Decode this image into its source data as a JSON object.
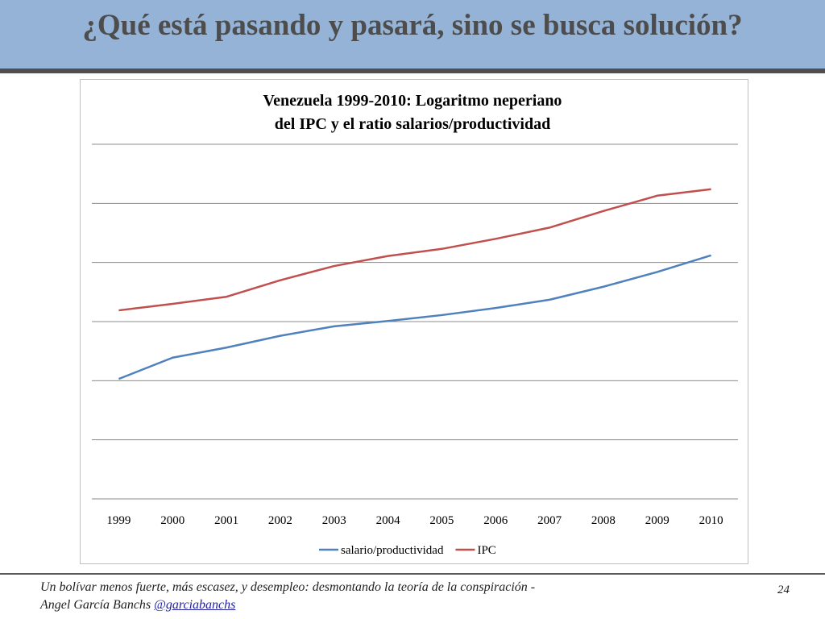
{
  "slide": {
    "title": "¿Qué está pasando y pasará, sino se busca solución?",
    "page_number": "24"
  },
  "footer": {
    "line1": "Un bolívar menos fuerte, más escasez, y desempleo: desmontando la teoría de la conspiración -",
    "author": "Angel García Banchs ",
    "handle": "@garciabanchs"
  },
  "colors": {
    "header_band": "#95b3d7",
    "salario_series": "#4f81bd",
    "ipc_series": "#c0504d"
  },
  "chart_data": {
    "type": "line",
    "title_line1": "Venezuela 1999-2010: Logaritmo neperiano",
    "title_line2": "del IPC y el ratio salarios/productividad",
    "xlabel": "",
    "ylabel": "",
    "categories": [
      "1999",
      "2000",
      "2001",
      "2002",
      "2003",
      "2004",
      "2005",
      "2006",
      "2007",
      "2008",
      "2009",
      "2010"
    ],
    "ylim": [
      0,
      6
    ],
    "y_tick_labels_visible": false,
    "grid": true,
    "legend_position": "bottom",
    "series": [
      {
        "name": "salario/productividad",
        "color": "#4f81bd",
        "values": [
          2.03,
          2.39,
          2.56,
          2.76,
          2.92,
          3.01,
          3.11,
          3.23,
          3.37,
          3.59,
          3.84,
          4.12
        ]
      },
      {
        "name": "IPC",
        "color": "#c0504d",
        "values": [
          3.19,
          3.3,
          3.42,
          3.7,
          3.94,
          4.11,
          4.23,
          4.4,
          4.59,
          4.87,
          5.13,
          5.24
        ]
      }
    ]
  }
}
